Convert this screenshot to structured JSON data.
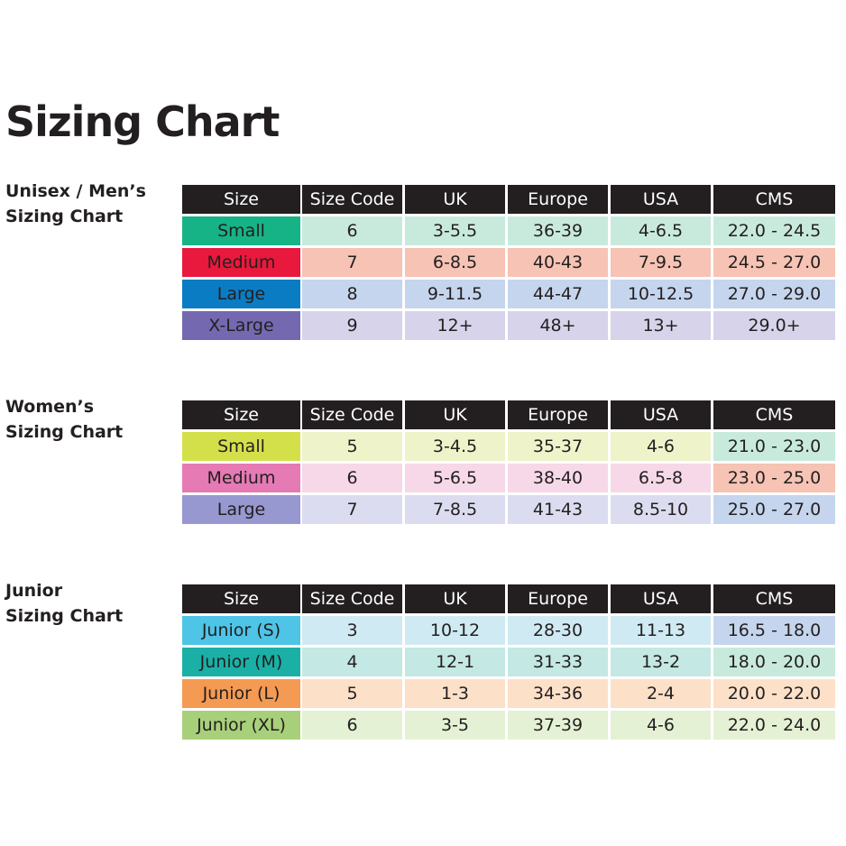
{
  "title": "Sizing Chart",
  "sections": [
    {
      "label": [
        "Unisex / Men’s",
        "Sizing Chart"
      ],
      "header": [
        "Size",
        "Size Code",
        "UK",
        "Europe",
        "USA",
        "CMS"
      ],
      "rows": [
        [
          "Small",
          "6",
          "3-5.5",
          "36-39",
          "4-6.5",
          "22.0 - 24.5"
        ],
        [
          "Medium",
          "7",
          "6-8.5",
          "40-43",
          "7-9.5",
          "24.5 - 27.0"
        ],
        [
          "Large",
          "8",
          "9-11.5",
          "44-47",
          "10-12.5",
          "27.0 - 29.0"
        ],
        [
          "X-Large",
          "9",
          "12+",
          "48+",
          "13+",
          "29.0+"
        ]
      ]
    },
    {
      "label": [
        "Women’s",
        "Sizing Chart"
      ],
      "header": [
        "Size",
        "Size Code",
        "UK",
        "Europe",
        "USA",
        "CMS"
      ],
      "rows": [
        [
          "Small",
          "5",
          "3-4.5",
          "35-37",
          "4-6",
          "21.0 - 23.0"
        ],
        [
          "Medium",
          "6",
          "5-6.5",
          "38-40",
          "6.5-8",
          "23.0 - 25.0"
        ],
        [
          "Large",
          "7",
          "7-8.5",
          "41-43",
          "8.5-10",
          "25.0 - 27.0"
        ]
      ]
    },
    {
      "label": [
        "Junior",
        "Sizing Chart"
      ],
      "header": [
        "Size",
        "Size Code",
        "UK",
        "Europe",
        "USA",
        "CMS"
      ],
      "rows": [
        [
          "Junior (S)",
          "3",
          "10-12",
          "28-30",
          "11-13",
          "16.5 - 18.0"
        ],
        [
          "Junior (M)",
          "4",
          "12-1",
          "31-33",
          "13-2",
          "18.0 - 20.0"
        ],
        [
          "Junior (L)",
          "5",
          "1-3",
          "34-36",
          "2-4",
          "20.0 - 22.0"
        ],
        [
          "Junior (XL)",
          "6",
          "3-5",
          "37-39",
          "4-6",
          "22.0 - 24.0"
        ]
      ]
    }
  ]
}
